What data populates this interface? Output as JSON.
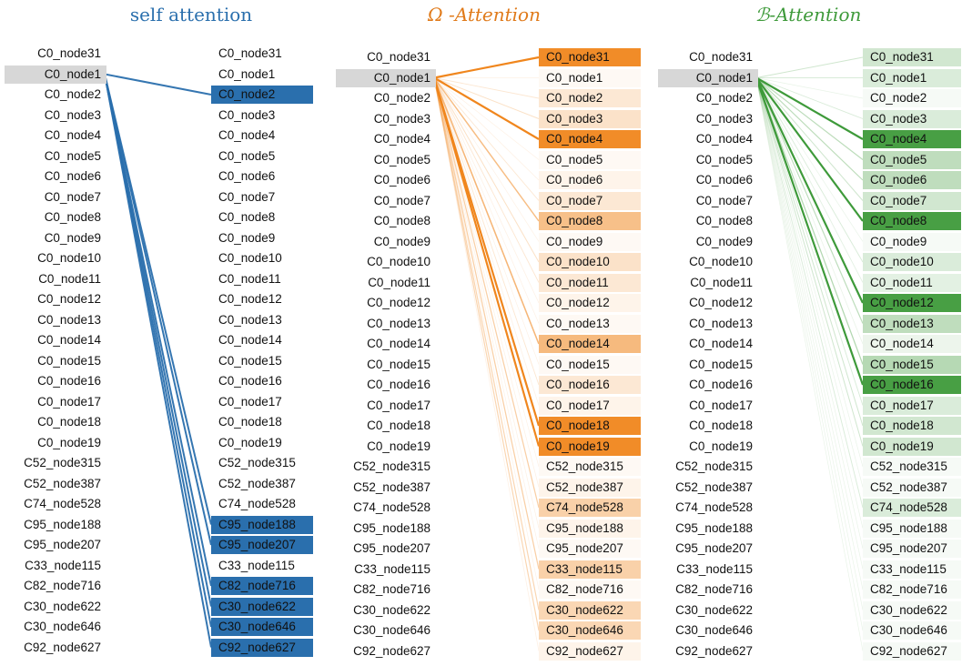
{
  "titles": {
    "self": "self attention",
    "q": "Ω -Attention",
    "b": "ℬ-Attention"
  },
  "colors": {
    "self": "#2a6fad",
    "q": "#f0861d",
    "b": "#3e9a3a",
    "query_highlight": "#d7d7d7"
  },
  "left_nodes": [
    "C0_node31",
    "C0_node1",
    "C0_node2",
    "C0_node3",
    "C0_node4",
    "C0_node5",
    "C0_node6",
    "C0_node7",
    "C0_node8",
    "C0_node9",
    "C0_node10",
    "C0_node11",
    "C0_node12",
    "C0_node13",
    "C0_node14",
    "C0_node15",
    "C0_node16",
    "C0_node17",
    "C0_node18",
    "C0_node19",
    "C52_node315",
    "C52_node387",
    "C74_node528",
    "C95_node188",
    "C95_node207",
    "C33_node115",
    "C82_node716",
    "C30_node622",
    "C30_node646",
    "C92_node627"
  ],
  "right_nodes": [
    "C0_node31",
    "C0_node1",
    "C0_node2",
    "C0_node3",
    "C0_node4",
    "C0_node5",
    "C0_node6",
    "C0_node7",
    "C0_node8",
    "C0_node9",
    "C0_node10",
    "C0_node11",
    "C0_node12",
    "C0_node13",
    "C0_node14",
    "C0_node15",
    "C0_node16",
    "C0_node17",
    "C0_node18",
    "C0_node19",
    "C52_node315",
    "C52_node387",
    "C74_node528",
    "C95_node188",
    "C95_node207",
    "C33_node115",
    "C82_node716",
    "C30_node622",
    "C30_node646",
    "C92_node627"
  ],
  "query_index": 1,
  "panels": [
    {
      "key": "self",
      "weights": [
        0,
        0,
        1,
        0,
        0,
        0,
        0,
        0,
        0,
        0,
        0,
        0,
        0,
        0,
        0,
        0,
        0,
        0,
        0,
        0,
        0,
        0,
        0,
        1,
        1,
        0,
        1,
        1,
        1,
        1
      ]
    },
    {
      "key": "q",
      "weights": [
        1,
        0.05,
        0.2,
        0.25,
        1,
        0.05,
        0.1,
        0.2,
        0.55,
        0.05,
        0.25,
        0.2,
        0.1,
        0.05,
        0.6,
        0.05,
        0.2,
        0.1,
        1,
        1,
        0.05,
        0.1,
        0.4,
        0.1,
        0.05,
        0.4,
        0.05,
        0.35,
        0.35,
        0.1
      ]
    },
    {
      "key": "b",
      "weights": [
        0.25,
        0.2,
        0.05,
        0.2,
        1,
        0.35,
        0.35,
        0.25,
        1,
        0.05,
        0.2,
        0.15,
        1,
        0.35,
        0.1,
        0.4,
        1,
        0.2,
        0.25,
        0.25,
        0.05,
        0.05,
        0.2,
        0.05,
        0.05,
        0.05,
        0.05,
        0.05,
        0.05,
        0.05
      ]
    }
  ]
}
